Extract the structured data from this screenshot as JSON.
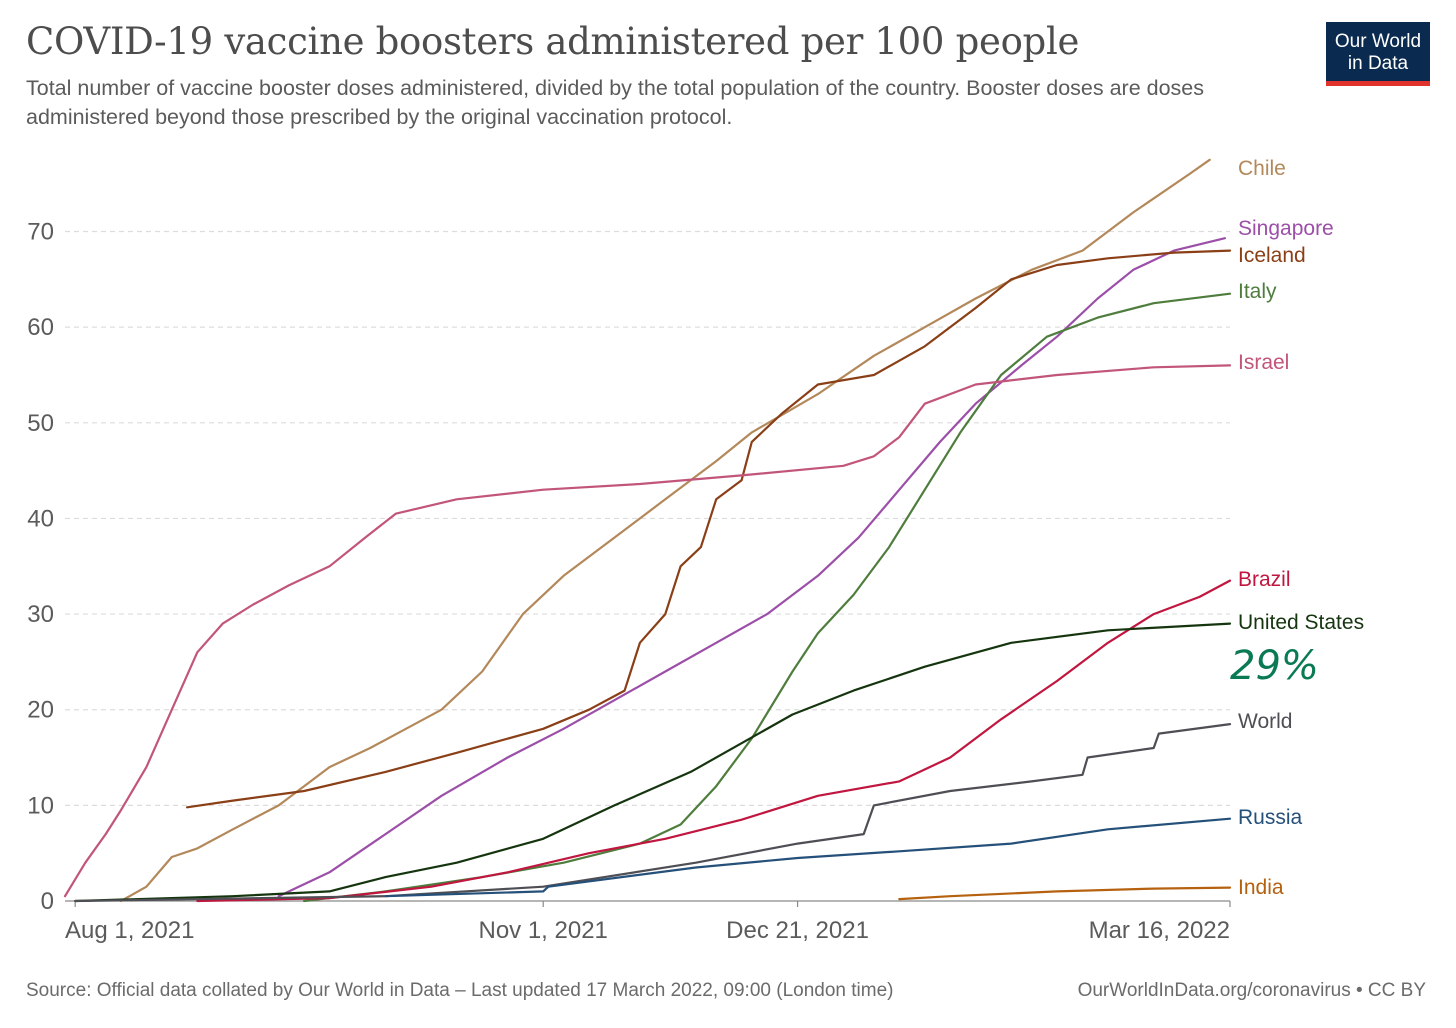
{
  "header": {
    "title": "COVID-19 vaccine boosters administered per 100 people",
    "subtitle": "Total number of vaccine booster doses administered, divided by the total population of the country. Booster doses are doses administered beyond those prescribed by the original vaccination protocol."
  },
  "logo": {
    "line1": "Our World",
    "line2": "in Data",
    "bg_color": "#0b2a4f",
    "bar_color": "#e1322b"
  },
  "footer": {
    "source": "Source: Official data collated by Our World in Data – Last updated 17 March 2022, 09:00 (London time)",
    "link": "OurWorldInData.org/coronavirus • CC BY"
  },
  "annotation": {
    "text": "29%",
    "handwritten": true,
    "color": "#0a7a55"
  },
  "chart_data": {
    "type": "line",
    "title": "COVID-19 vaccine boosters administered per 100 people",
    "xlabel": "",
    "ylabel": "",
    "ylim": [
      0,
      78
    ],
    "xlim": [
      "2021-07-30",
      "2022-03-16"
    ],
    "y_ticks": [
      0,
      10,
      20,
      30,
      40,
      50,
      60,
      70
    ],
    "x_ticks": [
      {
        "date": "2021-08-01",
        "label": "Aug 1, 2021"
      },
      {
        "date": "2021-11-01",
        "label": "Nov 1, 2021"
      },
      {
        "date": "2021-12-21",
        "label": "Dec 21, 2021"
      },
      {
        "date": "2022-03-16",
        "label": "Mar 16, 2022"
      }
    ],
    "grid": "horizontal-dashed",
    "legend": "right-end-labels",
    "series": [
      {
        "name": "Chile",
        "color": "#b3885a",
        "points": [
          [
            "2021-08-10",
            0
          ],
          [
            "2021-08-15",
            1.5
          ],
          [
            "2021-08-20",
            4.6
          ],
          [
            "2021-08-25",
            5.5
          ],
          [
            "2021-09-01",
            7.5
          ],
          [
            "2021-09-10",
            10
          ],
          [
            "2021-09-20",
            14
          ],
          [
            "2021-09-28",
            16
          ],
          [
            "2021-10-05",
            18
          ],
          [
            "2021-10-12",
            20
          ],
          [
            "2021-10-20",
            24
          ],
          [
            "2021-10-28",
            30
          ],
          [
            "2021-11-05",
            34
          ],
          [
            "2021-11-15",
            38
          ],
          [
            "2021-11-25",
            42
          ],
          [
            "2021-12-05",
            46
          ],
          [
            "2021-12-12",
            49
          ],
          [
            "2021-12-25",
            53
          ],
          [
            "2022-01-05",
            57
          ],
          [
            "2022-01-15",
            60
          ],
          [
            "2022-01-25",
            63
          ],
          [
            "2022-02-05",
            66
          ],
          [
            "2022-02-15",
            68
          ],
          [
            "2022-02-25",
            72
          ],
          [
            "2022-03-08",
            76
          ],
          [
            "2022-03-12",
            77.5
          ]
        ]
      },
      {
        "name": "Singapore",
        "color": "#9c4fa8",
        "points": [
          [
            "2021-09-10",
            0.5
          ],
          [
            "2021-09-20",
            3
          ],
          [
            "2021-10-01",
            7
          ],
          [
            "2021-10-12",
            11
          ],
          [
            "2021-10-25",
            15
          ],
          [
            "2021-11-05",
            18
          ],
          [
            "2021-11-15",
            21
          ],
          [
            "2021-11-25",
            24
          ],
          [
            "2021-12-05",
            27
          ],
          [
            "2021-12-15",
            30
          ],
          [
            "2021-12-25",
            34
          ],
          [
            "2022-01-02",
            38
          ],
          [
            "2022-01-10",
            43
          ],
          [
            "2022-01-18",
            48
          ],
          [
            "2022-01-25",
            52
          ],
          [
            "2022-02-03",
            56
          ],
          [
            "2022-02-10",
            59
          ],
          [
            "2022-02-18",
            63
          ],
          [
            "2022-02-25",
            66
          ],
          [
            "2022-03-05",
            68
          ],
          [
            "2022-03-15",
            69.3
          ]
        ]
      },
      {
        "name": "Iceland",
        "color": "#8a3f16",
        "points": [
          [
            "2021-08-23",
            9.8
          ],
          [
            "2021-09-01",
            10.5
          ],
          [
            "2021-09-15",
            11.5
          ],
          [
            "2021-10-01",
            13.5
          ],
          [
            "2021-10-15",
            15.5
          ],
          [
            "2021-11-01",
            18
          ],
          [
            "2021-11-10",
            20
          ],
          [
            "2021-11-17",
            22
          ],
          [
            "2021-11-20",
            27
          ],
          [
            "2021-11-25",
            30
          ],
          [
            "2021-11-28",
            35
          ],
          [
            "2021-12-02",
            37
          ],
          [
            "2021-12-05",
            42
          ],
          [
            "2021-12-10",
            44
          ],
          [
            "2021-12-12",
            48
          ],
          [
            "2021-12-18",
            51
          ],
          [
            "2021-12-25",
            54
          ],
          [
            "2022-01-05",
            55
          ],
          [
            "2022-01-15",
            58
          ],
          [
            "2022-01-25",
            62
          ],
          [
            "2022-02-01",
            65
          ],
          [
            "2022-02-10",
            66.5
          ],
          [
            "2022-02-20",
            67.2
          ],
          [
            "2022-03-05",
            67.8
          ],
          [
            "2022-03-16",
            68
          ]
        ]
      },
      {
        "name": "Italy",
        "color": "#4e7d3d",
        "points": [
          [
            "2021-09-15",
            0
          ],
          [
            "2021-10-01",
            1
          ],
          [
            "2021-10-20",
            2.5
          ],
          [
            "2021-11-05",
            4
          ],
          [
            "2021-11-20",
            6
          ],
          [
            "2021-11-28",
            8
          ],
          [
            "2021-12-05",
            12
          ],
          [
            "2021-12-12",
            17
          ],
          [
            "2021-12-20",
            24
          ],
          [
            "2021-12-25",
            28
          ],
          [
            "2022-01-01",
            32
          ],
          [
            "2022-01-08",
            37
          ],
          [
            "2022-01-15",
            43
          ],
          [
            "2022-01-22",
            49
          ],
          [
            "2022-01-30",
            55
          ],
          [
            "2022-02-08",
            59
          ],
          [
            "2022-02-18",
            61
          ],
          [
            "2022-03-01",
            62.5
          ],
          [
            "2022-03-16",
            63.5
          ]
        ]
      },
      {
        "name": "Israel",
        "color": "#c2557a",
        "points": [
          [
            "2021-07-30",
            0.5
          ],
          [
            "2021-08-03",
            4
          ],
          [
            "2021-08-07",
            7
          ],
          [
            "2021-08-10",
            9.5
          ],
          [
            "2021-08-15",
            14
          ],
          [
            "2021-08-20",
            20
          ],
          [
            "2021-08-25",
            26
          ],
          [
            "2021-08-30",
            29
          ],
          [
            "2021-09-05",
            31
          ],
          [
            "2021-09-12",
            33
          ],
          [
            "2021-09-20",
            35
          ],
          [
            "2021-09-27",
            38
          ],
          [
            "2021-10-03",
            40.5
          ],
          [
            "2021-10-15",
            42
          ],
          [
            "2021-11-01",
            43
          ],
          [
            "2021-11-20",
            43.6
          ],
          [
            "2021-12-10",
            44.5
          ],
          [
            "2021-12-30",
            45.5
          ],
          [
            "2022-01-05",
            46.5
          ],
          [
            "2022-01-10",
            48.5
          ],
          [
            "2022-01-15",
            52
          ],
          [
            "2022-01-25",
            54
          ],
          [
            "2022-02-10",
            55
          ],
          [
            "2022-03-01",
            55.8
          ],
          [
            "2022-03-16",
            56
          ]
        ]
      },
      {
        "name": "Brazil",
        "color": "#c0163f",
        "points": [
          [
            "2021-08-25",
            0
          ],
          [
            "2021-09-20",
            0.3
          ],
          [
            "2021-10-10",
            1.5
          ],
          [
            "2021-10-25",
            3
          ],
          [
            "2021-11-10",
            5
          ],
          [
            "2021-11-25",
            6.5
          ],
          [
            "2021-12-10",
            8.5
          ],
          [
            "2021-12-25",
            11
          ],
          [
            "2022-01-10",
            12.5
          ],
          [
            "2022-01-20",
            15
          ],
          [
            "2022-01-30",
            19
          ],
          [
            "2022-02-10",
            23
          ],
          [
            "2022-02-20",
            27
          ],
          [
            "2022-03-01",
            30
          ],
          [
            "2022-03-10",
            31.8
          ],
          [
            "2022-03-16",
            33.5
          ]
        ]
      },
      {
        "name": "United States",
        "color": "#15350f",
        "points": [
          [
            "2021-08-01",
            0
          ],
          [
            "2021-09-01",
            0.5
          ],
          [
            "2021-09-20",
            1
          ],
          [
            "2021-10-01",
            2.5
          ],
          [
            "2021-10-15",
            4
          ],
          [
            "2021-11-01",
            6.5
          ],
          [
            "2021-11-15",
            10
          ],
          [
            "2021-11-30",
            13.5
          ],
          [
            "2021-12-10",
            16.5
          ],
          [
            "2021-12-20",
            19.5
          ],
          [
            "2022-01-01",
            22
          ],
          [
            "2022-01-15",
            24.5
          ],
          [
            "2022-02-01",
            27
          ],
          [
            "2022-02-20",
            28.3
          ],
          [
            "2022-03-16",
            29
          ]
        ]
      },
      {
        "name": "World",
        "color": "#4e4e55",
        "points": [
          [
            "2021-08-01",
            0
          ],
          [
            "2021-10-01",
            0.5
          ],
          [
            "2021-11-01",
            1.5
          ],
          [
            "2021-12-01",
            4
          ],
          [
            "2021-12-21",
            6
          ],
          [
            "2022-01-03",
            7
          ],
          [
            "2022-01-05",
            10
          ],
          [
            "2022-01-20",
            11.5
          ],
          [
            "2022-02-05",
            12.5
          ],
          [
            "2022-02-15",
            13.2
          ],
          [
            "2022-02-16",
            15
          ],
          [
            "2022-03-01",
            16
          ],
          [
            "2022-03-02",
            17.5
          ],
          [
            "2022-03-16",
            18.5
          ]
        ]
      },
      {
        "name": "Russia",
        "color": "#25507a",
        "points": [
          [
            "2021-10-01",
            0.5
          ],
          [
            "2021-11-01",
            1
          ],
          [
            "2021-11-02",
            1.5
          ],
          [
            "2021-12-01",
            3.5
          ],
          [
            "2021-12-21",
            4.5
          ],
          [
            "2022-01-10",
            5.2
          ],
          [
            "2022-02-01",
            6
          ],
          [
            "2022-02-20",
            7.5
          ],
          [
            "2022-03-16",
            8.6
          ]
        ]
      },
      {
        "name": "India",
        "color": "#b5610f",
        "points": [
          [
            "2022-01-10",
            0.2
          ],
          [
            "2022-01-20",
            0.5
          ],
          [
            "2022-02-10",
            1
          ],
          [
            "2022-03-01",
            1.3
          ],
          [
            "2022-03-16",
            1.4
          ]
        ]
      }
    ],
    "end_labels": [
      "Chile",
      "Singapore",
      "Iceland",
      "Italy",
      "Israel",
      "Brazil",
      "United States",
      "World",
      "Russia",
      "India"
    ]
  }
}
